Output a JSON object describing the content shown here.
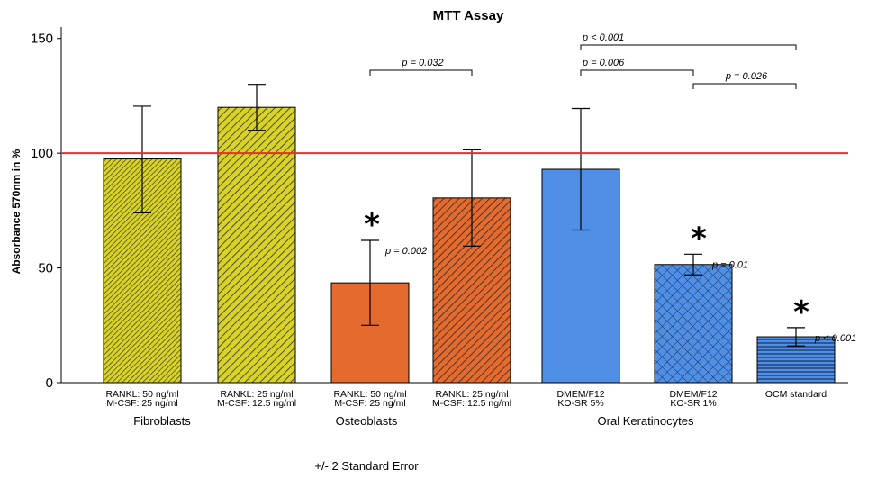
{
  "chart_data": {
    "type": "bar",
    "title": "MTT Assay",
    "ylabel": "Absorbance 570nm in %",
    "xlabel": "",
    "ylim": [
      0,
      155
    ],
    "yticks": [
      0,
      50,
      100,
      150
    ],
    "reference_line": {
      "value": 100,
      "color": "#e8302a"
    },
    "categories": [
      [
        "RANKL: 50 ng/ml",
        "M-CSF: 25 ng/ml"
      ],
      [
        "RANKL: 25 ng/ml",
        "M-CSF: 12.5 ng/ml"
      ],
      [
        "RANKL: 50 ng/ml",
        "M-CSF: 25 ng/ml"
      ],
      [
        "RANKL: 25 ng/ml",
        "M-CSF: 12.5 ng/ml"
      ],
      [
        "DMEM/F12",
        "KO-SR 5%"
      ],
      [
        "DMEM/F12",
        "KO-SR 1%"
      ],
      [
        "OCM standard"
      ]
    ],
    "values": [
      97.5,
      120.0,
      43.5,
      80.5,
      93.0,
      51.5,
      20.0
    ],
    "error_low": [
      74.0,
      110.0,
      25.0,
      59.5,
      66.5,
      47.0,
      16.0
    ],
    "error_high": [
      120.5,
      130.0,
      62.0,
      101.5,
      119.5,
      56.0,
      24.0
    ],
    "colors": [
      "#d8d326",
      "#d8d326",
      "#e56a2e",
      "#e56a2e",
      "#4f8fe6",
      "#4f8fe6",
      "#4f8fe6"
    ],
    "patterns": [
      "dense-diagonal",
      "diagonal",
      "none",
      "diagonal",
      "none",
      "crosshatch",
      "horizontal"
    ],
    "groups": [
      {
        "label": "Fibroblasts",
        "bars": [
          0,
          1
        ]
      },
      {
        "label": "Osteoblasts",
        "bars": [
          2,
          3
        ]
      },
      {
        "label": "Oral Keratinocytes",
        "bars": [
          4,
          5,
          6
        ]
      }
    ],
    "significance_brackets": [
      {
        "from": 2,
        "to": 3,
        "label": "p = 0.032"
      },
      {
        "from": 4,
        "to": 6,
        "label": "p < 0.001"
      },
      {
        "from": 4,
        "to": 5,
        "label": "p = 0.006"
      },
      {
        "from": 5,
        "to": 6,
        "label": "p = 0.026"
      }
    ],
    "bar_annotations": [
      {
        "bar": 2,
        "star": "*",
        "label": "p = 0.002"
      },
      {
        "bar": 5,
        "star": "*",
        "label": "p = 0.01"
      },
      {
        "bar": 6,
        "star": "*",
        "label": "p < 0.001"
      }
    ],
    "footnote": "+/- 2 Standard Error",
    "grid": false,
    "legend": "none"
  }
}
